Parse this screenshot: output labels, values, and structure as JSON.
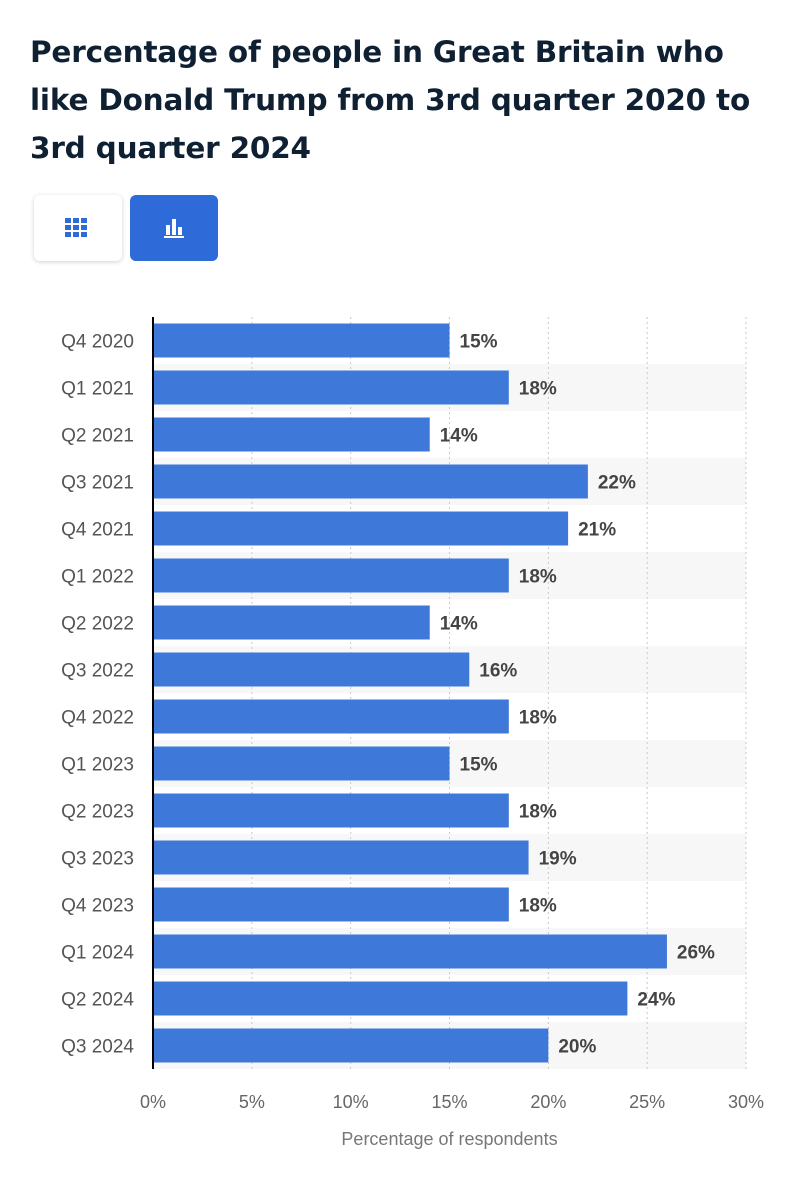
{
  "title": "Percentage of people in Great Britain who like Donald Trump from 3rd quarter 2020 to 3rd quarter 2024",
  "toolbar": {
    "buttons": [
      {
        "icon": "table-grid-icon",
        "active": false
      },
      {
        "icon": "bar-chart-icon",
        "active": true
      }
    ]
  },
  "colors": {
    "bar": "#3e78d9",
    "active_button": "#2f6ad9",
    "title": "#0f2033"
  },
  "chart_data": {
    "type": "bar",
    "orientation": "horizontal",
    "categories": [
      "Q4 2020",
      "Q1 2021",
      "Q2 2021",
      "Q3 2021",
      "Q4 2021",
      "Q1 2022",
      "Q2 2022",
      "Q3 2022",
      "Q4 2022",
      "Q1 2023",
      "Q2 2023",
      "Q3 2023",
      "Q4 2023",
      "Q1 2024",
      "Q2 2024",
      "Q3 2024"
    ],
    "values": [
      15,
      18,
      14,
      22,
      21,
      18,
      14,
      16,
      18,
      15,
      18,
      19,
      18,
      26,
      24,
      20
    ],
    "value_labels": [
      "15%",
      "18%",
      "14%",
      "22%",
      "21%",
      "18%",
      "14%",
      "16%",
      "18%",
      "15%",
      "18%",
      "19%",
      "18%",
      "26%",
      "24%",
      "20%"
    ],
    "xticks": [
      0,
      5,
      10,
      15,
      20,
      25,
      30
    ],
    "xtick_labels": [
      "0%",
      "5%",
      "10%",
      "15%",
      "20%",
      "25%",
      "30%"
    ],
    "xlim": [
      0,
      30
    ],
    "xlabel": "Percentage of respondents",
    "grid": true,
    "legend": "none"
  }
}
